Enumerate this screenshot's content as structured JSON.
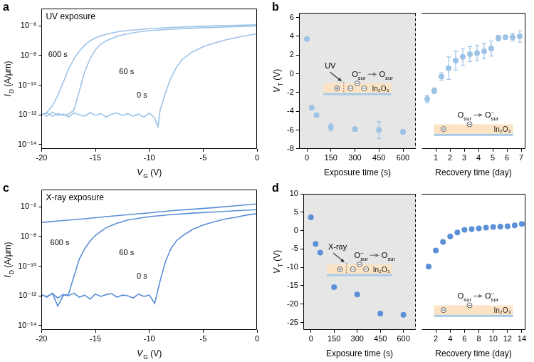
{
  "chart_data": [
    {
      "panel": "a",
      "type": "line",
      "title": "UV exposure",
      "log": "y",
      "grid": false,
      "x_label": [
        {
          "text": "V",
          "sub": "G"
        },
        {
          "text": " (V)"
        }
      ],
      "y_label": [
        {
          "text": "I",
          "sub": "D"
        },
        {
          "text": " (A/μm)"
        }
      ],
      "xlim": [
        -20,
        0
      ],
      "xticks": [
        -20,
        -15,
        -10,
        -5,
        0
      ],
      "ylim": [
        5e-15,
        1.5e-05
      ],
      "yticks": [
        {
          "value": 1e-14,
          "label": "10⁻¹⁴"
        },
        {
          "value": 1e-12,
          "label": "10⁻¹²"
        },
        {
          "value": 1e-10,
          "label": "10⁻¹⁰"
        },
        {
          "value": 1e-08,
          "label": "10⁻⁸"
        },
        {
          "value": 1e-06,
          "label": "10⁻⁶"
        }
      ],
      "series": [
        {
          "name": "600 s",
          "color": "#9dc3e6",
          "x": [
            -20,
            -19.5,
            -19,
            -18.5,
            -18,
            -17.5,
            -17,
            -16.5,
            -16,
            -15.5,
            -15,
            -14,
            -13,
            -12,
            -10,
            -8,
            -6,
            -4,
            -2,
            0
          ],
          "values": [
            1e-12,
            1.5e-12,
            4e-12,
            2e-11,
            1.5e-10,
            1.2e-09,
            6e-09,
            2e-08,
            5e-08,
            1e-07,
            1.6e-07,
            2.8e-07,
            4e-07,
            5e-07,
            6.5e-07,
            8e-07,
            9e-07,
            1e-06,
            1.1e-06,
            1.2e-06
          ]
        },
        {
          "name": "60 s",
          "color": "#9dc3e6",
          "x": [
            -20,
            -19.5,
            -19,
            -18.5,
            -18,
            -17.5,
            -17,
            -16.5,
            -16,
            -15.5,
            -15,
            -14.5,
            -14,
            -13,
            -12,
            -11,
            -10,
            -8,
            -6,
            -4,
            -2,
            0
          ],
          "values": [
            1e-12,
            1.3e-12,
            8e-13,
            1.2e-12,
            9e-13,
            1.1e-12,
            2e-12,
            4e-11,
            8e-10,
            6e-09,
            2.5e-08,
            6e-08,
            1e-07,
            2e-07,
            3e-07,
            4e-07,
            4.8e-07,
            6e-07,
            7e-07,
            8e-07,
            9e-07,
            1e-06
          ]
        },
        {
          "name": "0 s",
          "color": "#9dc3e6",
          "x": [
            -20,
            -19.5,
            -19,
            -18.5,
            -18,
            -17.5,
            -17,
            -16.5,
            -16,
            -15.5,
            -15,
            -14.5,
            -14,
            -13.5,
            -13,
            -12.5,
            -12,
            -11.5,
            -11,
            -10.5,
            -10,
            -9.5,
            -9.2,
            -9,
            -8.5,
            -8,
            -7.5,
            -7,
            -6,
            -5,
            -4,
            -3,
            -2,
            -1,
            0
          ],
          "values": [
            1.2e-12,
            8e-13,
            1.5e-12,
            9e-13,
            1.1e-12,
            7e-13,
            1.3e-12,
            1e-12,
            8e-13,
            1.4e-12,
            9e-13,
            1.2e-12,
            7e-13,
            1.1e-12,
            1.3e-12,
            9e-13,
            1.2e-12,
            8e-13,
            1.1e-12,
            7e-13,
            1.3e-12,
            6e-13,
            1.5e-13,
            2e-12,
            3e-11,
            3e-10,
            1.5e-09,
            5e-09,
            1.8e-08,
            4e-08,
            7e-08,
            1.1e-07,
            1.6e-07,
            2.2e-07,
            3e-07
          ]
        }
      ]
    },
    {
      "panel": "b",
      "type": "scatter",
      "color": "#9dc3e6",
      "marker": "circle",
      "grid": false,
      "y_label": [
        {
          "text": "V",
          "sub": "T"
        },
        {
          "text": " (V)"
        }
      ],
      "ylim": [
        -8,
        6.5
      ],
      "yticks": [
        -8,
        -6,
        -4,
        -2,
        0,
        2,
        4,
        6
      ],
      "parts": [
        {
          "x_label": "Exposure time (s)",
          "xlim": [
            -50,
            680
          ],
          "xticks": [
            0,
            150,
            300,
            450,
            600
          ],
          "x": [
            0,
            30,
            60,
            150,
            300,
            450,
            600
          ],
          "values": [
            3.7,
            -3.6,
            -4.4,
            -5.7,
            -5.9,
            -6.0,
            -6.2
          ],
          "errors": [
            null,
            null,
            null,
            0.35,
            0.2,
            0.9,
            0.25
          ],
          "inset": {
            "source": "UV",
            "from": {
              "text": "O",
              "sub": "sur",
              "sup": "−"
            },
            "to": {
              "text": "O",
              "sub": "sur"
            },
            "layer": "In₂O₃"
          }
        },
        {
          "x_label": "Recovery time (day)",
          "xlim": [
            0,
            7.3
          ],
          "xticks": [
            1,
            2,
            3,
            4,
            5,
            6,
            7
          ],
          "x": [
            0.4,
            0.9,
            1.4,
            1.9,
            2.4,
            2.9,
            3.4,
            3.9,
            4.4,
            4.9,
            5.4,
            5.9,
            6.4,
            6.9
          ],
          "values": [
            -2.7,
            -1.8,
            -0.3,
            0.6,
            1.4,
            1.8,
            2.1,
            2.2,
            2.4,
            2.7,
            3.8,
            3.9,
            3.9,
            4.0
          ],
          "errors": [
            0.4,
            0.3,
            0.4,
            1.2,
            1.0,
            0.9,
            0.8,
            0.8,
            0.8,
            0.8,
            0.3,
            0.2,
            0.4,
            0.6
          ],
          "inset": {
            "from": {
              "text": "O",
              "sub": "sur"
            },
            "to": {
              "text": "O",
              "sub": "sur",
              "sup": "−"
            },
            "layer": "In₂O₃"
          }
        }
      ]
    },
    {
      "panel": "c",
      "type": "line",
      "title": "X-ray exposure",
      "log": "y",
      "grid": false,
      "x_label": [
        {
          "text": "V",
          "sub": "G"
        },
        {
          "text": " (V)"
        }
      ],
      "y_label": [
        {
          "text": "I",
          "sub": "D"
        },
        {
          "text": " (A/μm)"
        }
      ],
      "xlim": [
        -20,
        0
      ],
      "xticks": [
        -20,
        -15,
        -10,
        -5,
        0
      ],
      "ylim": [
        5e-15,
        1.5e-05
      ],
      "yticks": [
        {
          "value": 1e-14,
          "label": "10⁻¹⁴"
        },
        {
          "value": 1e-12,
          "label": "10⁻¹²"
        },
        {
          "value": 1e-10,
          "label": "10⁻¹⁰"
        },
        {
          "value": 1e-08,
          "label": "10⁻⁸"
        },
        {
          "value": 1e-06,
          "label": "10⁻⁶"
        }
      ],
      "series": [
        {
          "name": "600 s",
          "color": "#5b8fd6",
          "x": [
            -20,
            -18,
            -16,
            -14,
            -12,
            -10,
            -8,
            -6,
            -4,
            -2,
            0
          ],
          "values": [
            9e-08,
            1.2e-07,
            1.6e-07,
            2.2e-07,
            3e-07,
            4e-07,
            5.5e-07,
            7e-07,
            9e-07,
            1.2e-06,
            1.6e-06
          ]
        },
        {
          "name": "60 s",
          "color": "#5b8fd6",
          "x": [
            -20,
            -19.5,
            -19,
            -18.5,
            -18,
            -17.5,
            -17,
            -16.5,
            -16,
            -15.5,
            -15,
            -14,
            -13,
            -12,
            -10,
            -8,
            -6,
            -4,
            -2,
            0
          ],
          "values": [
            1.2e-12,
            8e-13,
            1.5e-12,
            2e-13,
            1e-12,
            1.3e-12,
            2e-11,
            3e-10,
            1.5e-09,
            5e-09,
            1.2e-08,
            4e-08,
            8e-08,
            1.3e-07,
            2.2e-07,
            3e-07,
            3.8e-07,
            4.6e-07,
            5.5e-07,
            6.5e-07
          ]
        },
        {
          "name": "0 s",
          "color": "#5b8fd6",
          "x": [
            -20,
            -19.5,
            -19,
            -18.5,
            -18,
            -17.5,
            -17,
            -16.5,
            -16,
            -15.5,
            -15,
            -14.5,
            -14,
            -13.5,
            -13,
            -12.5,
            -12,
            -11.5,
            -11,
            -10.5,
            -10,
            -9.5,
            -9,
            -8.5,
            -8,
            -7.5,
            -7,
            -6,
            -5,
            -4,
            -3,
            -2,
            -1,
            0
          ],
          "values": [
            1.1e-12,
            9e-13,
            1.4e-12,
            7e-13,
            1.2e-12,
            1e-12,
            1.5e-12,
            8e-13,
            1.1e-12,
            6e-13,
            1.3e-12,
            9e-13,
            1.2e-12,
            1.4e-12,
            8e-13,
            1.1e-12,
            1e-12,
            7e-13,
            1.3e-12,
            9e-13,
            1.1e-12,
            3e-13,
            1e-11,
            2e-10,
            1.5e-09,
            5e-09,
            1e-08,
            3e-08,
            6e-08,
            1e-07,
            1.5e-07,
            2e-07,
            2.8e-07,
            3.5e-07
          ]
        }
      ]
    },
    {
      "panel": "d",
      "type": "scatter",
      "color": "#5b8fd6",
      "marker": "circle",
      "grid": false,
      "y_label": [
        {
          "text": "V",
          "sub": "T"
        },
        {
          "text": " (V)"
        }
      ],
      "ylim": [
        -27,
        10
      ],
      "yticks": [
        -25,
        -20,
        -15,
        -10,
        -5,
        0,
        5,
        10
      ],
      "parts": [
        {
          "x_label": "Exposure time (s)",
          "xlim": [
            -50,
            680
          ],
          "xticks": [
            0,
            150,
            300,
            450,
            600
          ],
          "x": [
            0,
            30,
            60,
            150,
            300,
            450,
            600
          ],
          "values": [
            3.6,
            -3.6,
            -6.0,
            -15.4,
            -17.4,
            -22.6,
            -22.9
          ],
          "inset": {
            "source": "X-ray",
            "from": {
              "text": "O",
              "sub": "sur",
              "sup": "−"
            },
            "to": {
              "text": "O",
              "sub": "sur"
            },
            "layer": "In₂O₃"
          }
        },
        {
          "x_label": "Recovery time (day)",
          "xlim": [
            0,
            14.5
          ],
          "xticks": [
            2,
            4,
            6,
            8,
            10,
            12,
            14
          ],
          "x": [
            1,
            2,
            3,
            4,
            5,
            6,
            7,
            8,
            9,
            10,
            11,
            12,
            13,
            14
          ],
          "values": [
            -9.8,
            -5.4,
            -3.1,
            -1.6,
            -0.5,
            0.2,
            0.4,
            0.6,
            0.8,
            1.0,
            1.1,
            1.2,
            1.4,
            1.8
          ],
          "inset": {
            "from": {
              "text": "O",
              "sub": "sur"
            },
            "to": {
              "text": "O",
              "sub": "sur",
              "sup": "−"
            },
            "layer": "In₂O₃"
          }
        }
      ]
    }
  ]
}
